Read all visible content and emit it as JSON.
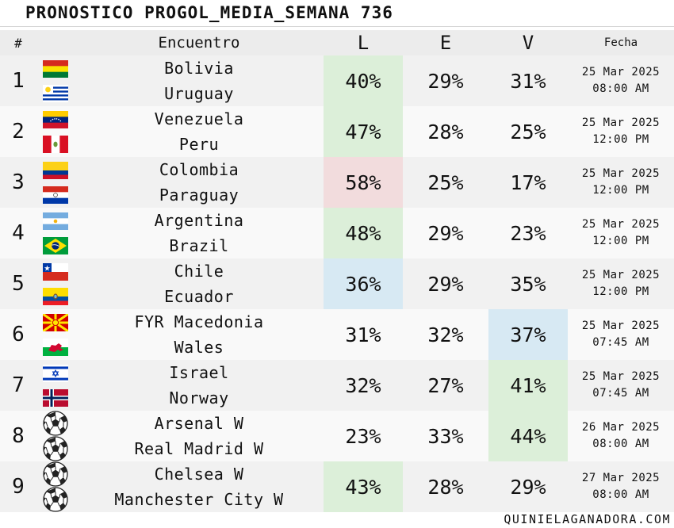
{
  "title": "PRONOSTICO PROGOL_MEDIA_SEMANA 736",
  "headers": {
    "num": "#",
    "match": "Encuentro",
    "l": "L",
    "e": "E",
    "v": "V",
    "date": "Fecha"
  },
  "highlight_colors": {
    "green": "#dcefd9",
    "pink": "#f2dcdd",
    "blue": "#d7e9f3"
  },
  "matches": [
    {
      "num": "1",
      "home": "Bolivia",
      "away": "Uruguay",
      "home_icon": "bolivia-flag-icon",
      "away_icon": "uruguay-flag-icon",
      "l": "40%",
      "e": "29%",
      "v": "31%",
      "date": "25 Mar 2025",
      "time": "08:00 AM",
      "highlight": "l",
      "highlight_color": "green"
    },
    {
      "num": "2",
      "home": "Venezuela",
      "away": "Peru",
      "home_icon": "venezuela-flag-icon",
      "away_icon": "peru-flag-icon",
      "l": "47%",
      "e": "28%",
      "v": "25%",
      "date": "25 Mar 2025",
      "time": "12:00 PM",
      "highlight": "l",
      "highlight_color": "green"
    },
    {
      "num": "3",
      "home": "Colombia",
      "away": "Paraguay",
      "home_icon": "colombia-flag-icon",
      "away_icon": "paraguay-flag-icon",
      "l": "58%",
      "e": "25%",
      "v": "17%",
      "date": "25 Mar 2025",
      "time": "12:00 PM",
      "highlight": "l",
      "highlight_color": "pink"
    },
    {
      "num": "4",
      "home": "Argentina",
      "away": "Brazil",
      "home_icon": "argentina-flag-icon",
      "away_icon": "brazil-flag-icon",
      "l": "48%",
      "e": "29%",
      "v": "23%",
      "date": "25 Mar 2025",
      "time": "12:00 PM",
      "highlight": "l",
      "highlight_color": "green"
    },
    {
      "num": "5",
      "home": "Chile",
      "away": "Ecuador",
      "home_icon": "chile-flag-icon",
      "away_icon": "ecuador-flag-icon",
      "l": "36%",
      "e": "29%",
      "v": "35%",
      "date": "25 Mar 2025",
      "time": "12:00 PM",
      "highlight": "l",
      "highlight_color": "blue"
    },
    {
      "num": "6",
      "home": "FYR Macedonia",
      "away": "Wales",
      "home_icon": "macedonia-flag-icon",
      "away_icon": "wales-flag-icon",
      "l": "31%",
      "e": "32%",
      "v": "37%",
      "date": "25 Mar 2025",
      "time": "07:45 AM",
      "highlight": "v",
      "highlight_color": "blue"
    },
    {
      "num": "7",
      "home": "Israel",
      "away": "Norway",
      "home_icon": "israel-flag-icon",
      "away_icon": "norway-flag-icon",
      "l": "32%",
      "e": "27%",
      "v": "41%",
      "date": "25 Mar 2025",
      "time": "07:45 AM",
      "highlight": "v",
      "highlight_color": "green"
    },
    {
      "num": "8",
      "home": "Arsenal W",
      "away": "Real Madrid W",
      "home_icon": "soccer-ball-icon",
      "away_icon": "soccer-ball-icon",
      "l": "23%",
      "e": "33%",
      "v": "44%",
      "date": "26 Mar 2025",
      "time": "08:00 AM",
      "highlight": "v",
      "highlight_color": "green"
    },
    {
      "num": "9",
      "home": "Chelsea W",
      "away": "Manchester City W",
      "home_icon": "soccer-ball-icon",
      "away_icon": "soccer-ball-icon",
      "l": "43%",
      "e": "28%",
      "v": "29%",
      "date": "27 Mar 2025",
      "time": "08:00 AM",
      "highlight": "l",
      "highlight_color": "green"
    }
  ],
  "footer": "QUINIELAGANADORA.COM"
}
